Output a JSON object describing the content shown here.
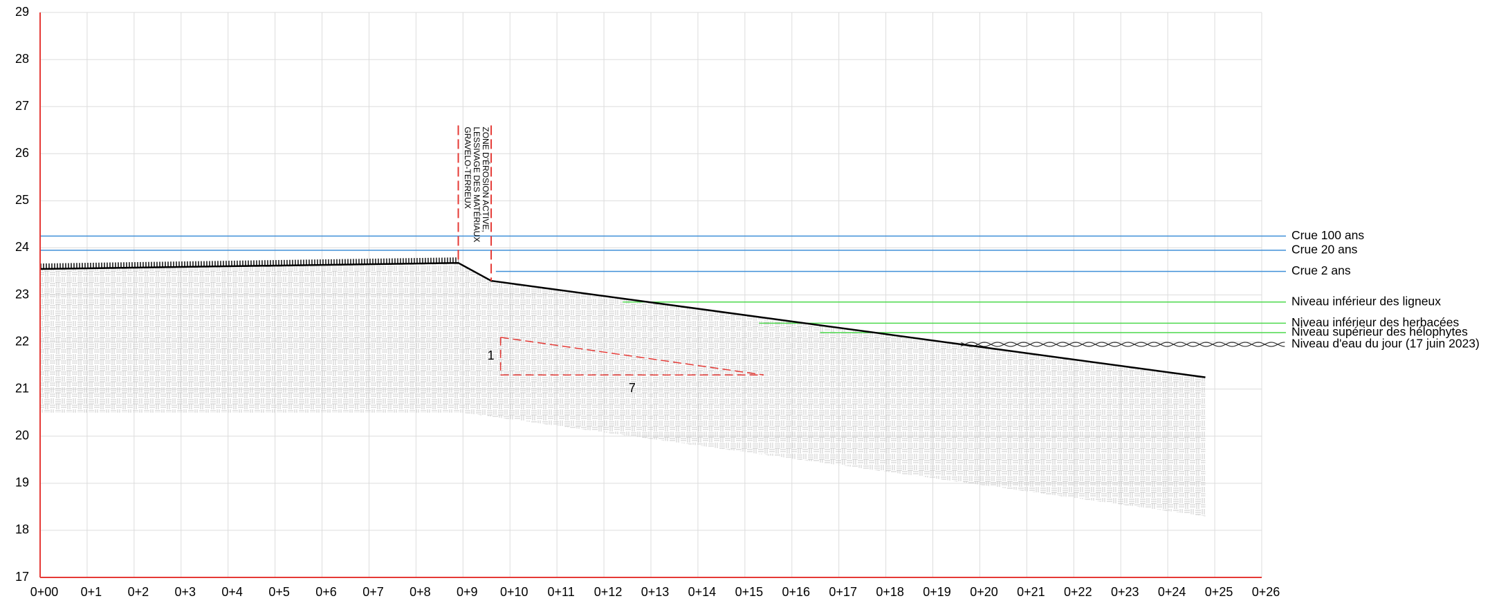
{
  "chart_data": {
    "type": "profile",
    "xlim": [
      0,
      26
    ],
    "ylim": [
      17,
      29
    ],
    "xticks": [
      {
        "value": 0,
        "label": "0+00"
      },
      {
        "value": 1,
        "label": "0+1"
      },
      {
        "value": 2,
        "label": "0+2"
      },
      {
        "value": 3,
        "label": "0+3"
      },
      {
        "value": 4,
        "label": "0+4"
      },
      {
        "value": 5,
        "label": "0+5"
      },
      {
        "value": 6,
        "label": "0+6"
      },
      {
        "value": 7,
        "label": "0+7"
      },
      {
        "value": 8,
        "label": "0+8"
      },
      {
        "value": 9,
        "label": "0+9"
      },
      {
        "value": 10,
        "label": "0+10"
      },
      {
        "value": 11,
        "label": "0+11"
      },
      {
        "value": 12,
        "label": "0+12"
      },
      {
        "value": 13,
        "label": "0+13"
      },
      {
        "value": 14,
        "label": "0+14"
      },
      {
        "value": 15,
        "label": "0+15"
      },
      {
        "value": 16,
        "label": "0+16"
      },
      {
        "value": 17,
        "label": "0+17"
      },
      {
        "value": 18,
        "label": "0+18"
      },
      {
        "value": 19,
        "label": "0+19"
      },
      {
        "value": 20,
        "label": "0+20"
      },
      {
        "value": 21,
        "label": "0+21"
      },
      {
        "value": 22,
        "label": "0+22"
      },
      {
        "value": 23,
        "label": "0+23"
      },
      {
        "value": 24,
        "label": "0+24"
      },
      {
        "value": 25,
        "label": "0+25"
      },
      {
        "value": 26,
        "label": "0+26"
      }
    ],
    "yticks": [
      17,
      18,
      19,
      20,
      21,
      22,
      23,
      24,
      25,
      26,
      27,
      28,
      29
    ],
    "grid": true,
    "axis_color": "#e53935",
    "ground": {
      "color": "#000000",
      "x": [
        0,
        8.9,
        9.6,
        24.8
      ],
      "values": [
        23.55,
        23.68,
        23.3,
        21.25
      ]
    },
    "fill_bottom": {
      "x": [
        24.8,
        9,
        8.9,
        0
      ],
      "values": [
        18.3,
        20.5,
        20.5,
        20.5
      ]
    },
    "levels": [
      {
        "name": "Crue 100 ans",
        "value": 24.25,
        "x_start": 0,
        "color": "#3f8fd8"
      },
      {
        "name": "Crue 20 ans",
        "value": 23.95,
        "x_start": 0,
        "color": "#3f8fd8"
      },
      {
        "name": "Crue 2 ans",
        "value": 23.5,
        "x_start": 9.7,
        "color": "#3f8fd8"
      },
      {
        "name": "Niveau inférieur des ligneux",
        "value": 22.85,
        "x_start": 12.4,
        "color": "#4cd94c"
      },
      {
        "name": "Niveau inférieur des herbacées",
        "value": 22.4,
        "x_start": 15.3,
        "color": "#4cd94c"
      },
      {
        "name": "Niveau supérieur des hélophytes",
        "value": 22.2,
        "x_start": 16.6,
        "color": "#4cd94c"
      },
      {
        "name": "Niveau d'eau du jour (17 juin 2023)",
        "value": 21.95,
        "x_start": 19.6,
        "color": "#333333",
        "wavy": true
      }
    ],
    "annotation": {
      "lines": [
        "ZONE D'ÉROSION ACTIVE,",
        "LESSIVAGE DES MATÉRIAUX",
        "GRAVELO-TERREUX"
      ],
      "marker_x": [
        8.9,
        9.6
      ],
      "marker_top": 26.6,
      "color": "#e53935"
    },
    "slope": {
      "x": [
        9.8,
        15.4
      ],
      "y": [
        22.1,
        21.3
      ],
      "rise": 1,
      "run": 7,
      "color": "#e53935"
    }
  }
}
